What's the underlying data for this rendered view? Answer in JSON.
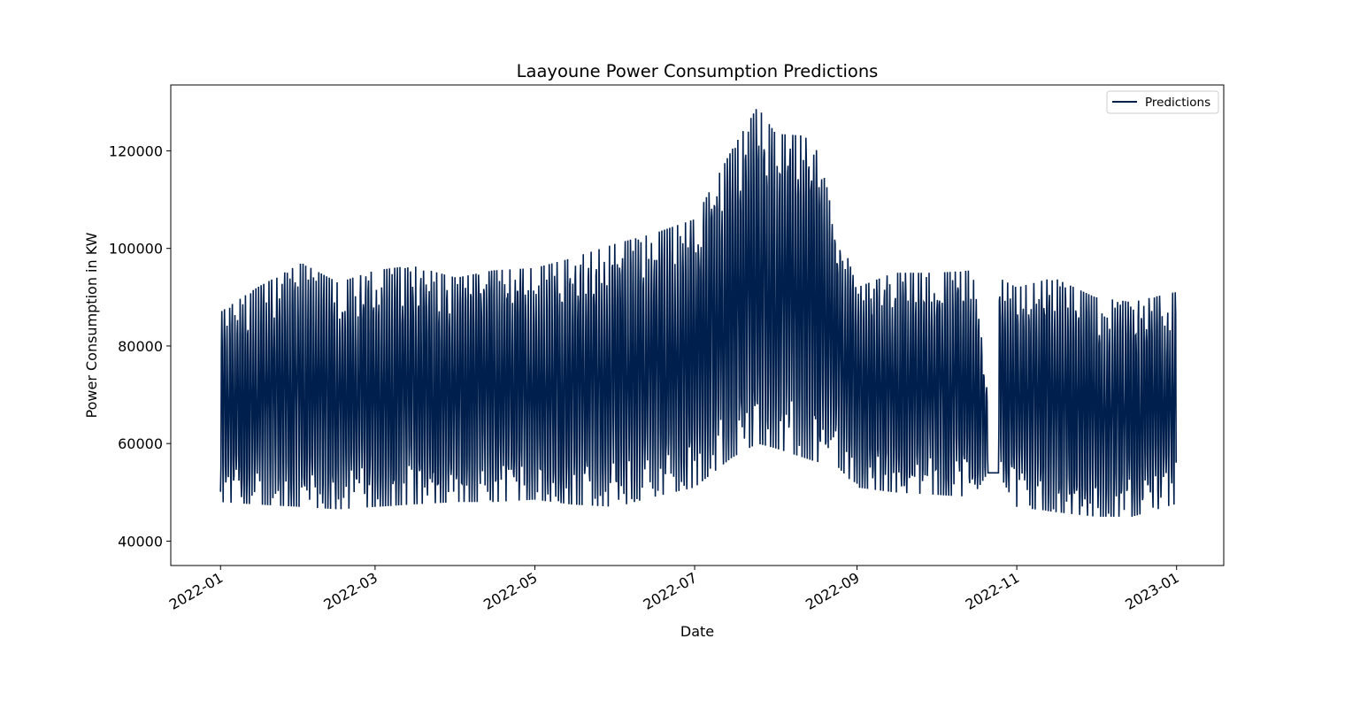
{
  "chart_data": {
    "type": "line",
    "title": "Laayoune Power Consumption Predictions",
    "xlabel": "Date",
    "ylabel": "Power Consumption in KW",
    "xlim": [
      "2021-12-13",
      "2023-01-19"
    ],
    "ylim": [
      35000,
      133500
    ],
    "x_ticks": [
      "2022-01",
      "2022-03",
      "2022-05",
      "2022-07",
      "2022-09",
      "2022-11",
      "2023-01"
    ],
    "y_ticks": [
      40000,
      60000,
      80000,
      100000,
      120000
    ],
    "grid": false,
    "legend": {
      "position": "top-right",
      "entries": [
        "Predictions"
      ]
    },
    "colors": {
      "line": "#001f4d",
      "frame": "#000000"
    },
    "series": [
      {
        "name": "Predictions",
        "sampling": "hourly (10-minute interval data resampled), gap 2022-10-21 to 2022-10-25",
        "daily_envelope": [
          {
            "date": "2022-01-01",
            "min": 48000,
            "max": 87000
          },
          {
            "date": "2022-01-15",
            "min": 47500,
            "max": 92000
          },
          {
            "date": "2022-02-01",
            "min": 47000,
            "max": 97000
          },
          {
            "date": "2022-02-15",
            "min": 46500,
            "max": 93000
          },
          {
            "date": "2022-03-01",
            "min": 47000,
            "max": 95500
          },
          {
            "date": "2022-03-15",
            "min": 47500,
            "max": 96500
          },
          {
            "date": "2022-04-01",
            "min": 48000,
            "max": 94000
          },
          {
            "date": "2022-04-15",
            "min": 48000,
            "max": 95500
          },
          {
            "date": "2022-05-01",
            "min": 48500,
            "max": 96000
          },
          {
            "date": "2022-05-15",
            "min": 47500,
            "max": 98000
          },
          {
            "date": "2022-06-01",
            "min": 47000,
            "max": 101000
          },
          {
            "date": "2022-06-15",
            "min": 49000,
            "max": 103000
          },
          {
            "date": "2022-07-01",
            "min": 51000,
            "max": 106000
          },
          {
            "date": "2022-07-15",
            "min": 57000,
            "max": 120000
          },
          {
            "date": "2022-07-25",
            "min": 60000,
            "max": 129000
          },
          {
            "date": "2022-08-01",
            "min": 59000,
            "max": 123500
          },
          {
            "date": "2022-08-15",
            "min": 56500,
            "max": 123000
          },
          {
            "date": "2022-08-25",
            "min": 55000,
            "max": 104000
          },
          {
            "date": "2022-09-01",
            "min": 51000,
            "max": 92000
          },
          {
            "date": "2022-09-15",
            "min": 50000,
            "max": 95000
          },
          {
            "date": "2022-10-01",
            "min": 49500,
            "max": 95000
          },
          {
            "date": "2022-10-15",
            "min": 49000,
            "max": 95500
          },
          {
            "date": "2022-10-21",
            "min": 54000,
            "max": 72000
          },
          {
            "date": "2022-10-25",
            "min": 54000,
            "max": 94000
          },
          {
            "date": "2022-11-01",
            "min": 47000,
            "max": 92000
          },
          {
            "date": "2022-11-15",
            "min": 46000,
            "max": 94000
          },
          {
            "date": "2022-12-01",
            "min": 45000,
            "max": 90000
          },
          {
            "date": "2022-12-15",
            "min": 45000,
            "max": 89000
          },
          {
            "date": "2022-12-31",
            "min": 47500,
            "max": 91000
          }
        ]
      }
    ]
  }
}
